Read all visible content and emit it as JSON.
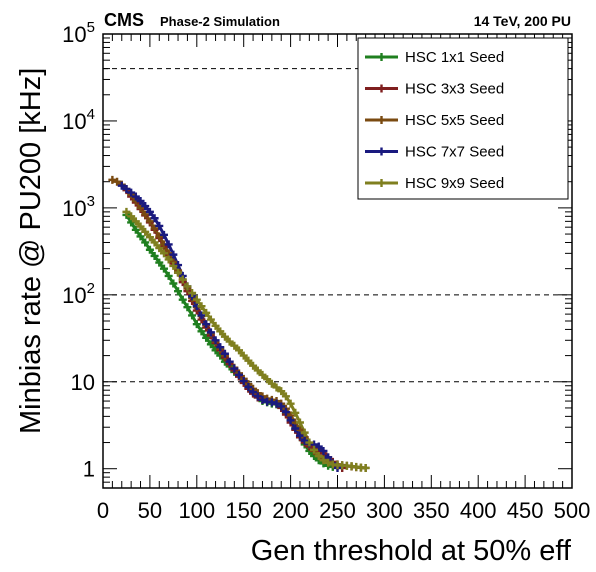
{
  "header": {
    "experiment": "CMS",
    "subtitle": "Phase-2 Simulation",
    "conditions": "14 TeV, 200 PU"
  },
  "chart_data": {
    "type": "line",
    "title": "",
    "xlabel": "Gen threshold at 50% eff",
    "ylabel": "Minbias rate @ PU200 [kHz]",
    "xlim": [
      0,
      500
    ],
    "ylim": [
      0.6,
      100000
    ],
    "y_scale": "log",
    "grid": "horizontal dashed lines at 10, 100 and 40000",
    "y_gridlines": [
      10,
      100,
      40000
    ],
    "legend_position": "top-right",
    "x_ticks": [
      "0",
      "50",
      "100",
      "150",
      "200",
      "250",
      "300",
      "350",
      "400",
      "450",
      "500"
    ],
    "y_ticks": [
      "1",
      "10",
      "10^2",
      "10^3",
      "10^4",
      "10^5"
    ],
    "series": [
      {
        "name": "HSC 1x1 Seed",
        "color": "#1f7f1f",
        "x": [
          25,
          30,
          35,
          40,
          45,
          50,
          55,
          60,
          65,
          70,
          75,
          80,
          85,
          90,
          95,
          100,
          105,
          110,
          115,
          120,
          125,
          130,
          135,
          140,
          145,
          150,
          155,
          160,
          165,
          170,
          175,
          180,
          185,
          190,
          195,
          200,
          205,
          210,
          215,
          220,
          225,
          230,
          235,
          240,
          245
        ],
        "y": [
          830,
          680,
          560,
          470,
          400,
          330,
          280,
          235,
          200,
          165,
          135,
          110,
          88,
          72,
          58,
          46,
          38,
          32,
          27,
          23,
          20,
          17,
          15,
          13,
          11.5,
          10,
          8.5,
          7.5,
          6.6,
          6.0,
          5.8,
          5.6,
          5.5,
          5.2,
          4.4,
          3.6,
          2.9,
          2.3,
          1.9,
          1.6,
          1.4,
          1.25,
          1.15,
          1.08,
          1.05
        ]
      },
      {
        "name": "HSC 3x3 Seed",
        "color": "#7f1f1f",
        "x": [
          25,
          30,
          35,
          40,
          45,
          50,
          55,
          60,
          65,
          70,
          75,
          80,
          85,
          90,
          95,
          100,
          105,
          110,
          115,
          120,
          125,
          130,
          135,
          140,
          145,
          150,
          155,
          160,
          165,
          170,
          175,
          180,
          185,
          190,
          195,
          200,
          205,
          210,
          215,
          220,
          225,
          230,
          235,
          240,
          245,
          250,
          255
        ],
        "y": [
          1600,
          1350,
          1150,
          970,
          820,
          680,
          560,
          450,
          360,
          290,
          230,
          180,
          140,
          110,
          85,
          66,
          52,
          42,
          34,
          28,
          23,
          19,
          16,
          13.5,
          11.5,
          9.7,
          8.3,
          7.3,
          6.6,
          6.2,
          6.0,
          5.9,
          5.6,
          5.0,
          4.2,
          3.4,
          2.8,
          2.3,
          2.0,
          1.8,
          1.7,
          1.6,
          1.5,
          1.35,
          1.2,
          1.08,
          1.02
        ]
      },
      {
        "name": "HSC 5x5 Seed",
        "color": "#7a4a10",
        "x": [
          10,
          15,
          20,
          25,
          30,
          35,
          40,
          45,
          50,
          55,
          60,
          65,
          70,
          75,
          80,
          85,
          90,
          95,
          100,
          105,
          110,
          115,
          120,
          125,
          130,
          135,
          140,
          145,
          150,
          155,
          160,
          165,
          170,
          175,
          180,
          185,
          190,
          195,
          200,
          205,
          210,
          215,
          220,
          225,
          230,
          235,
          240,
          245,
          250,
          255,
          260,
          265,
          270,
          275,
          280
        ],
        "y": [
          2100,
          2000,
          1850,
          1650,
          1420,
          1200,
          1000,
          840,
          700,
          580,
          470,
          380,
          300,
          240,
          190,
          150,
          118,
          92,
          72,
          57,
          45,
          36,
          29,
          24,
          20,
          17,
          14.5,
          12.5,
          10.8,
          9.4,
          8.3,
          7.4,
          6.8,
          6.4,
          6.2,
          6.0,
          5.6,
          4.9,
          4.1,
          3.4,
          2.8,
          2.3,
          1.9,
          1.6,
          1.4,
          1.28,
          1.2,
          1.15,
          1.12,
          1.1,
          1.08,
          1.06,
          1.04,
          1.03,
          1.02
        ]
      },
      {
        "name": "HSC 7x7 Seed",
        "color": "#1a1a7f",
        "x": [
          20,
          25,
          30,
          35,
          40,
          45,
          50,
          55,
          60,
          65,
          70,
          75,
          80,
          85,
          90,
          95,
          100,
          105,
          110,
          115,
          120,
          125,
          130,
          135,
          140,
          145,
          150,
          155,
          160,
          165,
          170,
          175,
          180,
          185,
          190,
          195,
          200,
          205,
          210,
          215,
          220,
          225,
          230,
          235,
          240,
          245,
          250
        ],
        "y": [
          1800,
          1650,
          1500,
          1350,
          1200,
          1050,
          900,
          760,
          620,
          490,
          380,
          290,
          220,
          165,
          125,
          96,
          74,
          58,
          46,
          37,
          30,
          25,
          21,
          17,
          14.2,
          12,
          10.2,
          8.7,
          7.6,
          6.8,
          6.2,
          5.9,
          5.8,
          5.6,
          5.2,
          4.5,
          3.6,
          2.9,
          2.4,
          2.1,
          1.95,
          1.9,
          1.8,
          1.6,
          1.35,
          1.15,
          1.02
        ]
      },
      {
        "name": "HSC 9x9 Seed",
        "color": "#7f7f1f",
        "x": [
          25,
          30,
          35,
          40,
          45,
          50,
          55,
          60,
          65,
          70,
          75,
          80,
          85,
          90,
          95,
          100,
          105,
          110,
          115,
          120,
          125,
          130,
          135,
          140,
          145,
          150,
          155,
          160,
          165,
          170,
          175,
          180,
          185,
          190,
          195,
          200,
          205,
          210,
          215,
          220,
          225,
          230,
          235,
          240,
          245,
          250,
          255,
          260,
          265,
          270,
          275,
          280
        ],
        "y": [
          900,
          800,
          700,
          610,
          530,
          460,
          400,
          345,
          300,
          255,
          215,
          180,
          150,
          125,
          105,
          88,
          74,
          62,
          52,
          44,
          38,
          33,
          29,
          26,
          23,
          20,
          17.5,
          15.3,
          13.5,
          12,
          10.7,
          9.5,
          8.6,
          7.8,
          6.8,
          5.6,
          4.4,
          3.4,
          2.6,
          2.0,
          1.65,
          1.4,
          1.25,
          1.17,
          1.12,
          1.1,
          1.09,
          1.08,
          1.07,
          1.05,
          1.03,
          1.02
        ]
      }
    ]
  }
}
